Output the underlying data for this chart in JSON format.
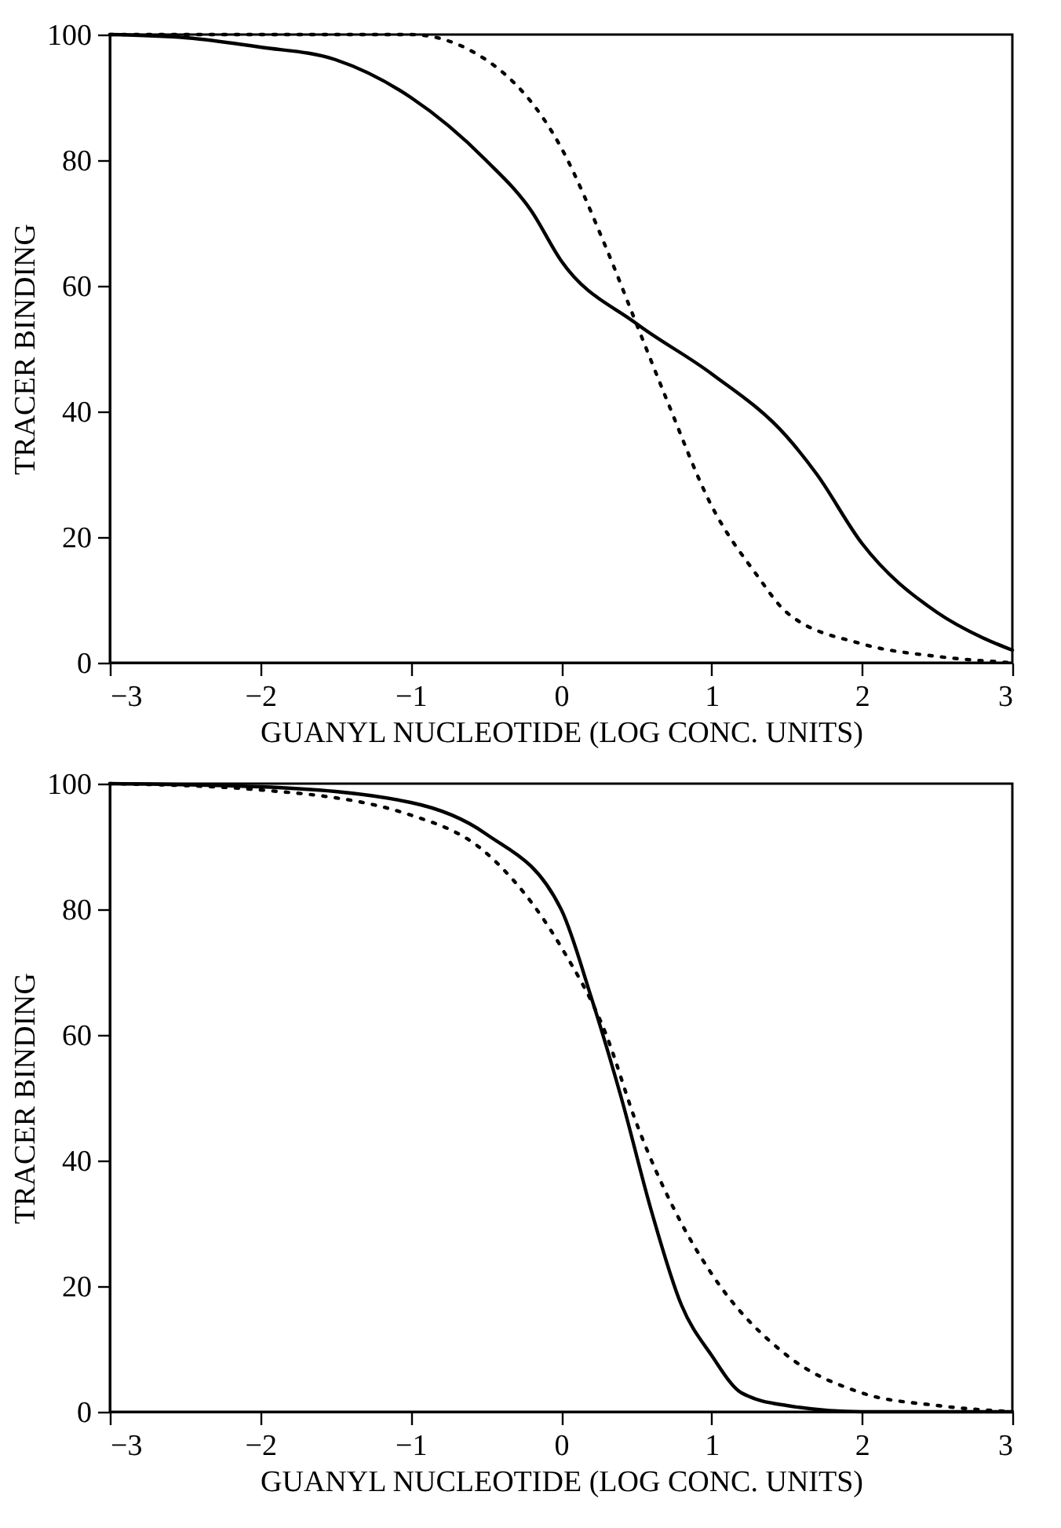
{
  "chart_data": [
    {
      "type": "line",
      "xlabel": "GUANYL NUCLEOTIDE (LOG CONC. UNITS)",
      "ylabel": "TRACER BINDING",
      "xlim": [
        -3,
        3
      ],
      "xticks": [
        -3,
        -2,
        -1,
        0,
        1,
        2,
        3
      ],
      "ylim": [
        0,
        100
      ],
      "yticks": [
        0,
        20,
        40,
        60,
        80,
        100
      ],
      "grid": false,
      "marker": "none",
      "series": [
        {
          "color": "#000000",
          "line_style": "solid",
          "x": [
            -3,
            -2.5,
            -2,
            -1.5,
            -1,
            -0.5,
            -0.2,
            0,
            0.5,
            1,
            1.5,
            1.7,
            2,
            2.5,
            2.8,
            3
          ],
          "values": [
            100,
            99.5,
            98,
            96,
            90,
            80,
            72,
            64,
            54,
            46,
            36,
            30,
            19,
            8,
            4,
            2
          ]
        },
        {
          "color": "#000000",
          "line_style": "dotted",
          "x": [
            -3,
            -2,
            -1,
            -0.5,
            0,
            0.3,
            0.5,
            0.7,
            1,
            1.3,
            1.5,
            2,
            2.5,
            3
          ],
          "values": [
            100,
            100,
            100,
            96,
            82,
            66,
            54,
            42,
            25,
            14,
            8,
            3,
            1,
            0
          ]
        }
      ]
    },
    {
      "type": "line",
      "xlabel": "GUANYL NUCLEOTIDE (LOG CONC. UNITS)",
      "ylabel": "TRACER BINDING",
      "xlim": [
        -3,
        3
      ],
      "xticks": [
        -3,
        -2,
        -1,
        0,
        1,
        2,
        3
      ],
      "ylim": [
        0,
        100
      ],
      "yticks": [
        0,
        20,
        40,
        60,
        80,
        100
      ],
      "grid": false,
      "marker": "none",
      "series": [
        {
          "color": "#000000",
          "line_style": "solid",
          "x": [
            -3,
            -2,
            -1,
            -0.5,
            0,
            0.2,
            0.4,
            0.6,
            0.8,
            1,
            1.2,
            1.5,
            2,
            3
          ],
          "values": [
            100,
            99.5,
            97,
            92,
            80,
            66,
            50,
            32,
            17,
            9,
            3,
            1,
            0,
            0
          ]
        },
        {
          "color": "#000000",
          "line_style": "dotted",
          "x": [
            -3,
            -2,
            -1,
            -0.5,
            0,
            0.3,
            0.5,
            0.8,
            1,
            1.5,
            2,
            2.5,
            3
          ],
          "values": [
            100,
            99,
            95,
            89,
            74,
            60,
            46,
            30,
            22,
            9,
            3,
            1,
            0
          ]
        }
      ]
    }
  ]
}
